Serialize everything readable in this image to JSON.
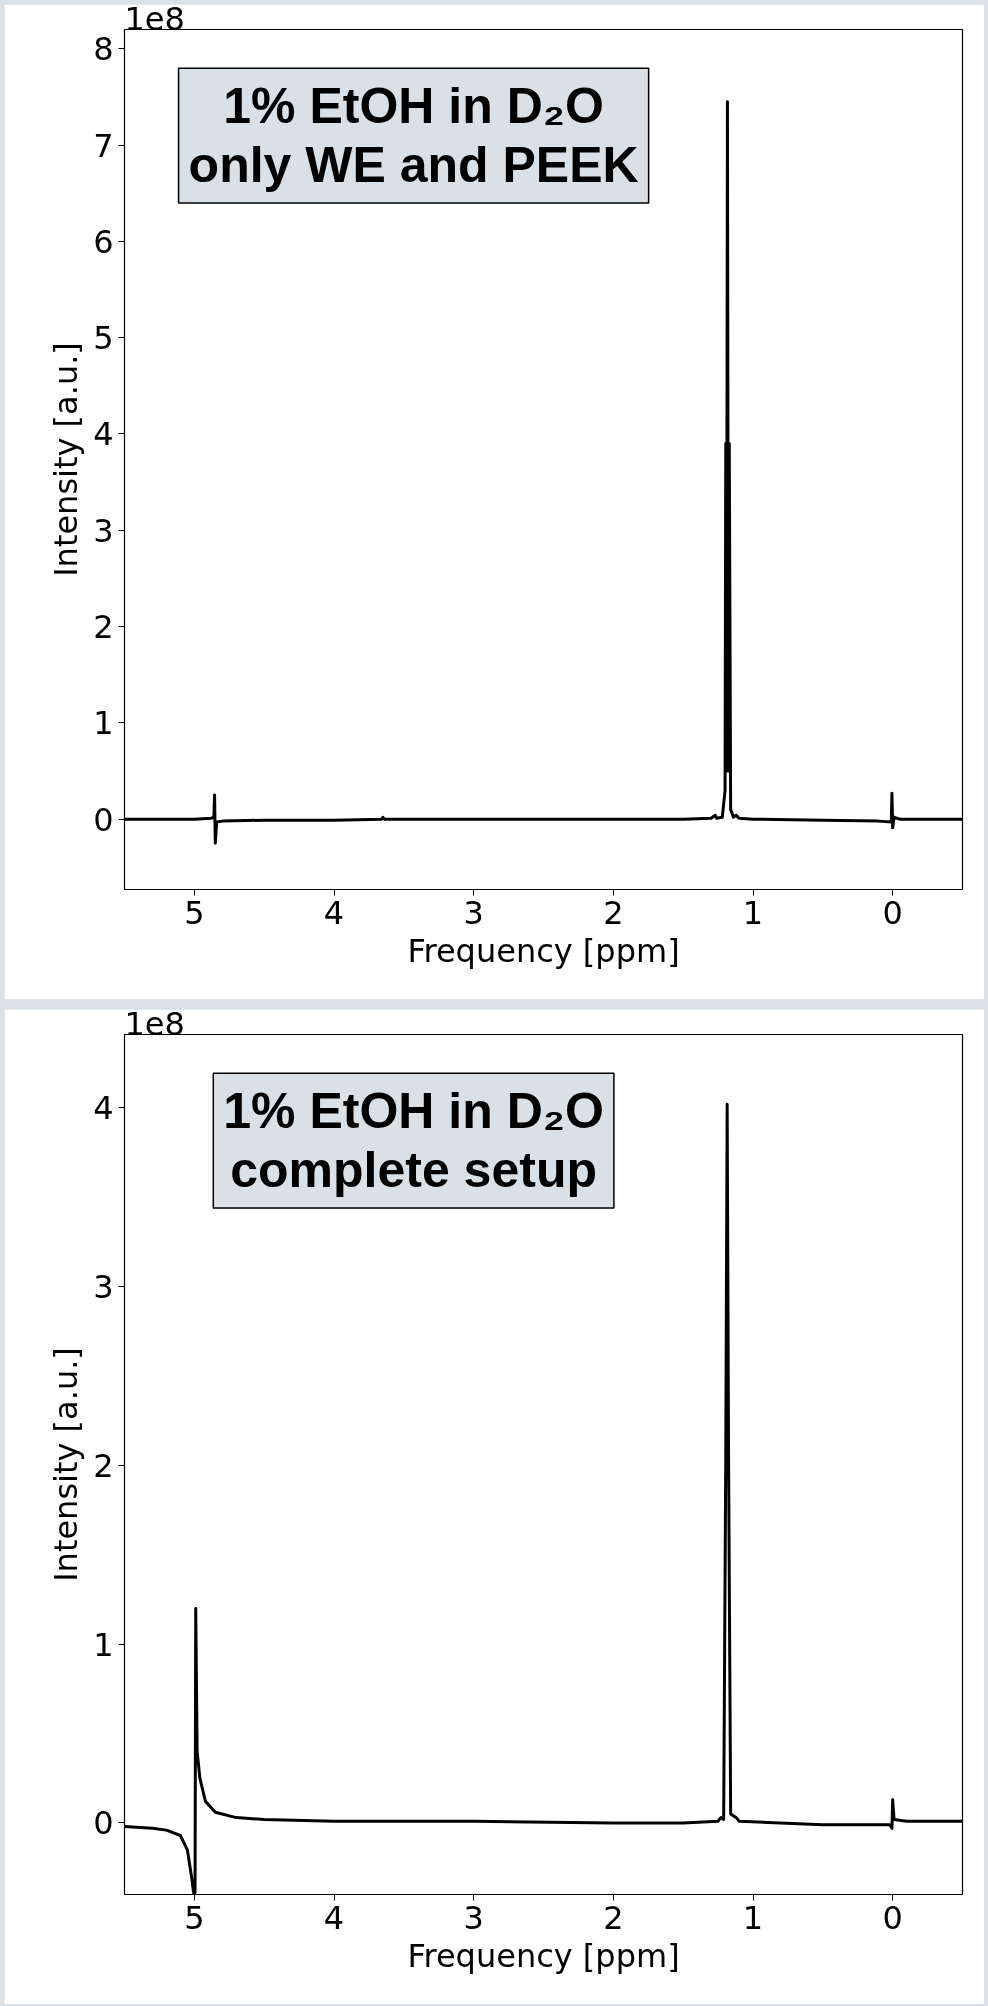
{
  "chart_data": [
    {
      "type": "line",
      "xlabel": "Frequency [ppm]",
      "ylabel": "Intensity [a.u.]",
      "annotations": [
        "1e8",
        "1% EtOH in D₂O\nonly WE and PEEK"
      ],
      "xlim": [
        5.5,
        -0.5
      ],
      "xticks": [
        5,
        4,
        3,
        2,
        1,
        0
      ],
      "ylim": [
        -0.73,
        8.2
      ],
      "yticks": [
        0,
        1,
        2,
        3,
        4,
        5,
        6,
        7,
        8
      ],
      "grid": false,
      "marker": "none",
      "line_style": "solid",
      "series": [
        {
          "color": "#000000",
          "x": [
            5.5,
            5.0,
            4.88,
            4.86,
            4.855,
            4.85,
            4.84,
            4.8,
            4.5,
            4.0,
            3.66,
            3.65,
            3.64,
            3.0,
            2.0,
            1.5,
            1.3,
            1.27,
            1.26,
            1.22,
            1.2,
            1.195,
            1.19,
            1.183,
            1.176,
            1.17,
            1.16,
            1.14,
            1.12,
            1.1,
            1.0,
            0.5,
            0.1,
            0.01,
            0.005,
            0.0,
            -0.01,
            -0.05,
            -0.5
          ],
          "values": [
            0,
            0,
            0.01,
            0.02,
            0.25,
            -0.25,
            -0.03,
            -0.02,
            -0.01,
            -0.01,
            0,
            0.02,
            0,
            0,
            0,
            0,
            0.01,
            0.04,
            0.01,
            0.02,
            0.3,
            3.9,
            0.5,
            7.45,
            0.5,
            3.9,
            0.1,
            0.02,
            0.04,
            0.01,
            0,
            -0.01,
            -0.02,
            -0.03,
            0.27,
            -0.09,
            0.02,
            0,
            0
          ]
        }
      ]
    },
    {
      "type": "line",
      "xlabel": "Frequency [ppm]",
      "ylabel": "Intensity [a.u.]",
      "annotations": [
        "1e8",
        "1% EtOH in D₂O\ncomplete setup"
      ],
      "xlim": [
        5.5,
        -0.5
      ],
      "xticks": [
        5,
        4,
        3,
        2,
        1,
        0
      ],
      "ylim": [
        -0.4,
        4.41
      ],
      "yticks": [
        0,
        1,
        2,
        3,
        4
      ],
      "grid": false,
      "marker": "none",
      "line_style": "solid",
      "series": [
        {
          "color": "#000000",
          "x": [
            5.5,
            5.3,
            5.2,
            5.1,
            5.05,
            5.02,
            5.005,
            4.995,
            4.99,
            4.98,
            4.96,
            4.92,
            4.85,
            4.7,
            4.5,
            4.0,
            3.0,
            2.0,
            1.5,
            1.25,
            1.23,
            1.21,
            1.195,
            1.185,
            1.175,
            1.16,
            1.12,
            1.1,
            0.5,
            0.02,
            0.005,
            0.0,
            -0.01,
            -0.1,
            -0.5
          ],
          "values": [
            -0.02,
            -0.03,
            -0.04,
            -0.07,
            -0.15,
            -0.3,
            -0.39,
            -0.39,
            1.2,
            0.4,
            0.25,
            0.12,
            0.06,
            0.03,
            0.02,
            0.01,
            0.01,
            0,
            0,
            0.01,
            0.03,
            0.02,
            2.05,
            4.02,
            2.05,
            0.05,
            0.03,
            0.01,
            -0.01,
            -0.01,
            -0.03,
            0.13,
            0.02,
            0.01,
            0.01
          ]
        }
      ]
    }
  ]
}
